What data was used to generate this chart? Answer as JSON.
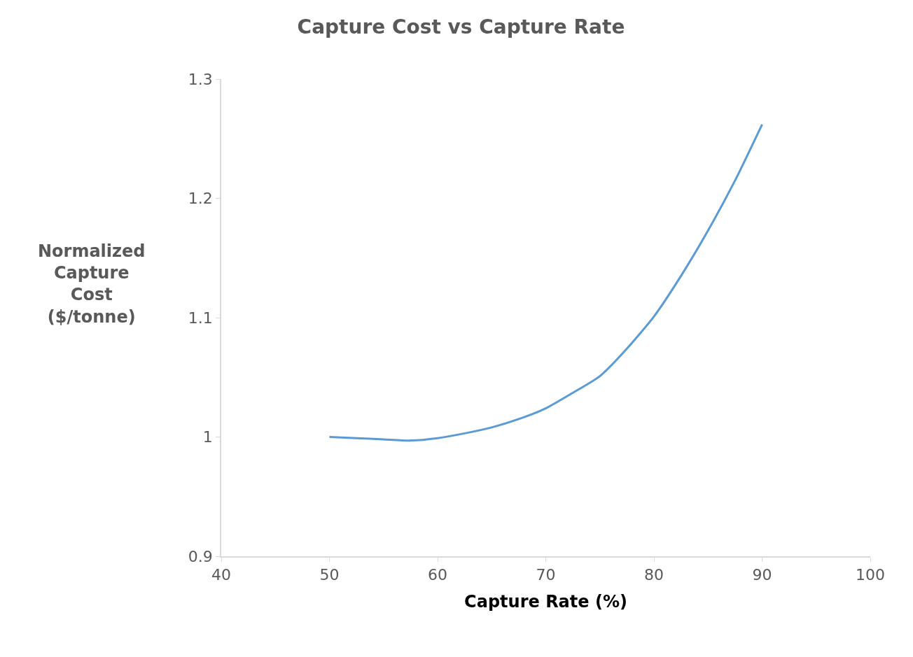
{
  "chart_data": {
    "type": "line",
    "title": "Capture Cost vs Capture Rate",
    "xlabel": "Capture Rate (%)",
    "ylabel": "Normalized Capture Cost ($/tonne)",
    "x": [
      50,
      52.5,
      55,
      57.5,
      60,
      62.5,
      65,
      67.5,
      70,
      72.5,
      75,
      77.5,
      80,
      82.5,
      85,
      87.5,
      90
    ],
    "series": [
      {
        "color": "#5b9bd5",
        "values": [
          1.0,
          0.999,
          0.998,
          0.997,
          0.999,
          1.003,
          1.008,
          1.015,
          1.024,
          1.037,
          1.051,
          1.074,
          1.101,
          1.135,
          1.173,
          1.215,
          1.262
        ]
      }
    ],
    "xlim": [
      40,
      100
    ],
    "xticks": [
      40,
      50,
      60,
      70,
      80,
      90,
      100
    ],
    "ylim": [
      0.9,
      1.3
    ],
    "yticks": [
      0.9,
      1,
      1.1,
      1.2,
      1.3
    ],
    "marker": "none",
    "line_style": "solid"
  }
}
